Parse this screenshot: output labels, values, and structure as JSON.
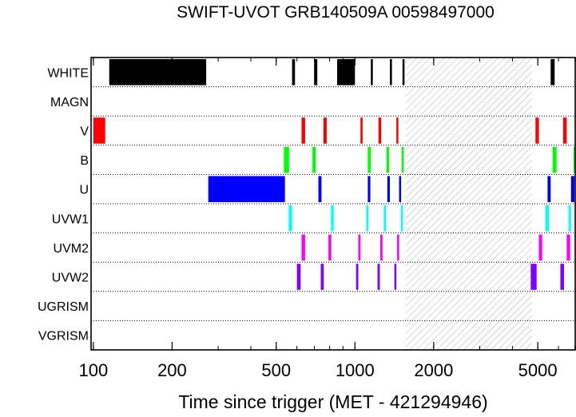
{
  "chart_data": {
    "type": "timeline",
    "title": "SWIFT-UVOT GRB140509A 00598497000",
    "xlabel": "Time since trigger (MET - 421294946)",
    "ylabel": "",
    "xscale": "log",
    "xlim": [
      98,
      7000
    ],
    "x_ticks": [
      {
        "value": 100,
        "label": "100"
      },
      {
        "value": 200,
        "label": "200"
      },
      {
        "value": 500,
        "label": "500"
      },
      {
        "value": 1000,
        "label": "1000"
      },
      {
        "value": 2000,
        "label": "2000"
      },
      {
        "value": 5000,
        "label": "5000"
      }
    ],
    "grid": "horizontal dotted separators",
    "shaded_interval": [
      1560,
      4750
    ],
    "filters": [
      {
        "name": "WHITE",
        "color": "#000000",
        "exposures": [
          [
            115,
            270
          ],
          [
            575,
            590
          ],
          [
            698,
            718
          ],
          [
            855,
            1000
          ],
          [
            1150,
            1170
          ],
          [
            1360,
            1385
          ],
          [
            1520,
            1545
          ],
          [
            5600,
            5800
          ]
        ]
      },
      {
        "name": "MAGN",
        "color": "#000000",
        "exposures": []
      },
      {
        "name": "V",
        "color": "#ff0000",
        "exposures": [
          [
            100,
            111
          ],
          [
            625,
            645
          ],
          [
            758,
            780
          ],
          [
            1050,
            1070
          ],
          [
            1230,
            1260
          ],
          [
            1440,
            1460
          ],
          [
            4900,
            5050
          ],
          [
            6250,
            6450
          ]
        ]
      },
      {
        "name": "B",
        "color": "#00ff00",
        "exposures": [
          [
            535,
            560
          ],
          [
            688,
            708
          ],
          [
            1120,
            1150
          ],
          [
            1320,
            1350
          ],
          [
            1510,
            1535
          ],
          [
            5700,
            5900
          ],
          [
            6850,
            7000
          ]
        ]
      },
      {
        "name": "U",
        "color": "#0000ff",
        "exposures": [
          [
            275,
            540
          ],
          [
            725,
            745
          ],
          [
            1120,
            1145
          ],
          [
            1330,
            1360
          ],
          [
            1475,
            1500
          ],
          [
            5450,
            5600
          ],
          [
            6700,
            6900
          ]
        ]
      },
      {
        "name": "UVW1",
        "color": "#00ffff",
        "exposures": [
          [
            558,
            575
          ],
          [
            810,
            830
          ],
          [
            1105,
            1125
          ],
          [
            1290,
            1315
          ],
          [
            1500,
            1520
          ],
          [
            5350,
            5520
          ],
          [
            6550,
            6700
          ]
        ]
      },
      {
        "name": "UVM2",
        "color": "#ff00ff",
        "exposures": [
          [
            625,
            645
          ],
          [
            792,
            812
          ],
          [
            1030,
            1050
          ],
          [
            1250,
            1275
          ],
          [
            1450,
            1470
          ],
          [
            5050,
            5200
          ],
          [
            6450,
            6650
          ]
        ]
      },
      {
        "name": "UVW2",
        "color": "#8000ff",
        "exposures": [
          [
            600,
            620
          ],
          [
            740,
            760
          ],
          [
            1010,
            1030
          ],
          [
            1220,
            1245
          ],
          [
            1415,
            1440
          ],
          [
            4700,
            4950
          ],
          [
            6100,
            6300
          ]
        ]
      },
      {
        "name": "UGRISM",
        "color": "#000000",
        "exposures": []
      },
      {
        "name": "VGRISM",
        "color": "#000000",
        "exposures": []
      }
    ]
  }
}
